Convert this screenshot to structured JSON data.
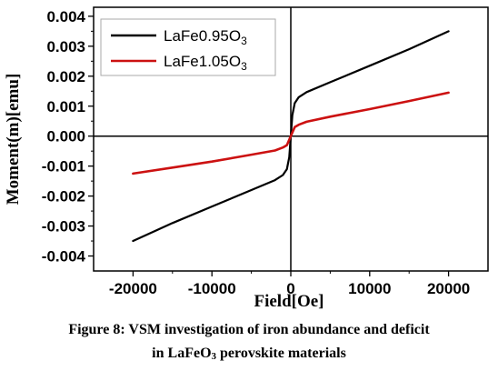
{
  "chart_data": {
    "type": "line",
    "xlabel": "Field[Oe]",
    "ylabel": "Moment(m)[emu]",
    "xlim": [
      -25000,
      25000
    ],
    "ylim": [
      -0.0045,
      0.0043
    ],
    "x_ticks": [
      -20000,
      -10000,
      0,
      10000,
      20000
    ],
    "x_tick_labels": [
      "-20000",
      "-10000",
      "0",
      "10000",
      "20000"
    ],
    "y_ticks": [
      -0.004,
      -0.003,
      -0.002,
      -0.001,
      0.0,
      0.001,
      0.002,
      0.003,
      0.004
    ],
    "y_tick_labels": [
      "-0.004",
      "-0.003",
      "-0.002",
      "-0.001",
      "0.000",
      "0.001",
      "0.002",
      "0.003",
      "0.004"
    ],
    "grid": false,
    "legend_position": "top-left",
    "series": [
      {
        "name": "LaFe0.95O3",
        "legend_main": "LaFe0.95O",
        "legend_sub": "3",
        "color": "#000000",
        "x": [
          -20000,
          -15000,
          -10000,
          -5000,
          -2000,
          -1000,
          -500,
          -200,
          0,
          200,
          500,
          1000,
          2000,
          5000,
          10000,
          15000,
          20000
        ],
        "y": [
          -0.0035,
          -0.0029,
          -0.00235,
          -0.0018,
          -0.00147,
          -0.0013,
          -0.0011,
          -0.0007,
          0.0,
          0.0007,
          0.0011,
          0.0013,
          0.00147,
          0.0018,
          0.00235,
          0.0029,
          0.0035
        ]
      },
      {
        "name": "LaFe1.05O3",
        "legend_main": "LaFe1.05O",
        "legend_sub": "3",
        "color": "#cc1111",
        "x": [
          -20000,
          -15000,
          -10000,
          -5000,
          -2000,
          -1000,
          -500,
          0,
          500,
          1000,
          2000,
          5000,
          10000,
          15000,
          20000
        ],
        "y": [
          -0.00125,
          -0.00105,
          -0.00085,
          -0.00062,
          -0.00048,
          -0.00038,
          -0.0003,
          0.0,
          0.0003,
          0.00038,
          0.00048,
          0.00065,
          0.0009,
          0.00117,
          0.00145
        ]
      }
    ]
  },
  "caption": {
    "line1": "Figure 8: VSM investigation of iron abundance and deficit",
    "line2_pre": "in LaFeO",
    "line2_sub": "3",
    "line2_post": " perovskite materials"
  }
}
